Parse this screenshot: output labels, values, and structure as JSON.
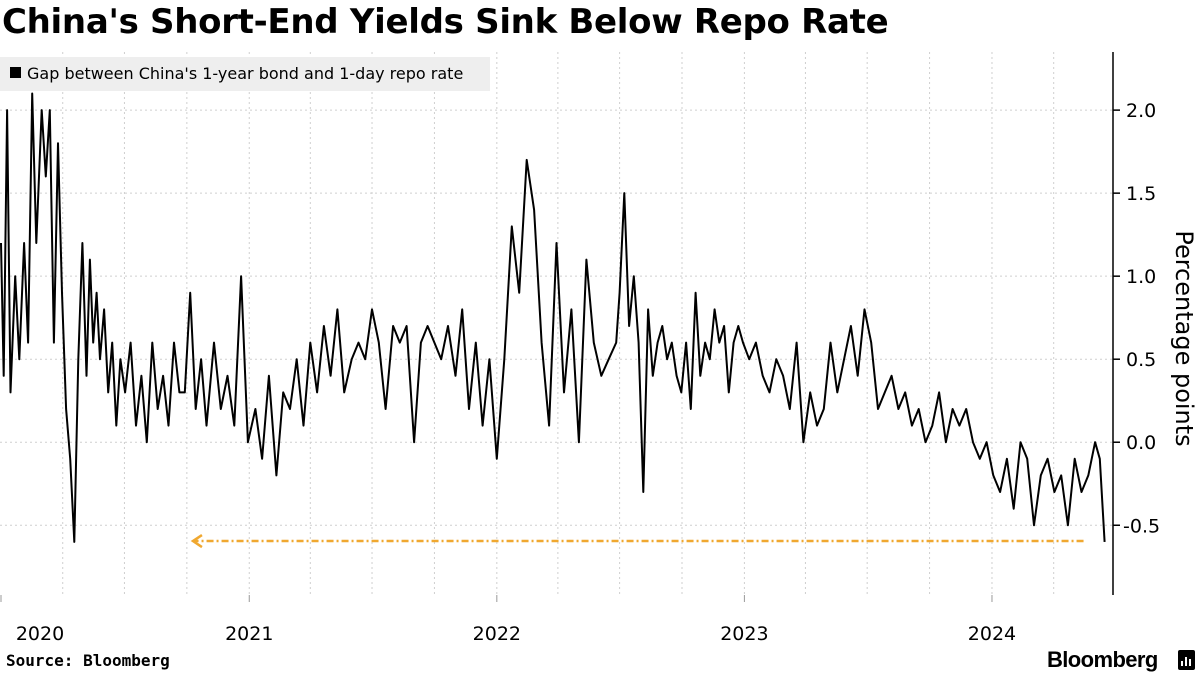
{
  "title": "China's Short-End Yields Sink Below Repo Rate",
  "source": "Source: Bloomberg",
  "brand": "Bloomberg",
  "chart_data": {
    "type": "line",
    "ylabel": "Percentage points",
    "ylim": [
      -0.92,
      2.35
    ],
    "y_ticks": [
      2.0,
      1.5,
      1.0,
      0.5,
      0.0,
      -0.5
    ],
    "y_tick_labels": [
      "2.0",
      "1.5",
      "1.0",
      "0.5",
      "0.0",
      "-0.5"
    ],
    "x_tick_labels": [
      "2020",
      "2021",
      "2022",
      "2023",
      "2024"
    ],
    "legend_position": "top-left",
    "grid": true,
    "series": [
      {
        "name": "Gap between China's 1-year bond and 1-day repo rate",
        "color": "#000000",
        "x": [
          "2020-01-01",
          "2020-01-05",
          "2020-01-10",
          "2020-01-15",
          "2020-01-22",
          "2020-01-28",
          "2020-02-04",
          "2020-02-10",
          "2020-02-16",
          "2020-02-22",
          "2020-03-01",
          "2020-03-07",
          "2020-03-13",
          "2020-03-19",
          "2020-03-25",
          "2020-03-31",
          "2020-04-06",
          "2020-04-12",
          "2020-04-18",
          "2020-04-24",
          "2020-04-30",
          "2020-05-06",
          "2020-05-11",
          "2020-05-16",
          "2020-05-21",
          "2020-05-26",
          "2020-06-01",
          "2020-06-07",
          "2020-06-13",
          "2020-06-19",
          "2020-06-25",
          "2020-07-02",
          "2020-07-10",
          "2020-07-18",
          "2020-07-26",
          "2020-08-03",
          "2020-08-11",
          "2020-08-19",
          "2020-08-27",
          "2020-09-04",
          "2020-09-12",
          "2020-09-20",
          "2020-09-28",
          "2020-10-06",
          "2020-10-14",
          "2020-10-22",
          "2020-10-30",
          "2020-11-10",
          "2020-11-20",
          "2020-11-30",
          "2020-12-10",
          "2020-12-20",
          "2020-12-30",
          "2021-01-10",
          "2021-01-20",
          "2021-01-30",
          "2021-02-10",
          "2021-02-20",
          "2021-03-02",
          "2021-03-12",
          "2021-03-22",
          "2021-04-01",
          "2021-04-11",
          "2021-04-21",
          "2021-05-01",
          "2021-05-11",
          "2021-05-21",
          "2021-06-01",
          "2021-06-11",
          "2021-06-21",
          "2021-07-01",
          "2021-07-11",
          "2021-07-21",
          "2021-08-01",
          "2021-08-11",
          "2021-08-21",
          "2021-09-01",
          "2021-09-11",
          "2021-09-21",
          "2021-10-01",
          "2021-10-11",
          "2021-10-21",
          "2021-11-01",
          "2021-11-11",
          "2021-11-21",
          "2021-12-01",
          "2021-12-11",
          "2021-12-21",
          "2022-01-01",
          "2022-01-12",
          "2022-01-23",
          "2022-02-03",
          "2022-02-14",
          "2022-02-25",
          "2022-03-08",
          "2022-03-19",
          "2022-03-30",
          "2022-04-10",
          "2022-04-21",
          "2022-05-02",
          "2022-05-13",
          "2022-05-24",
          "2022-06-04",
          "2022-06-15",
          "2022-06-26",
          "2022-07-01",
          "2022-07-08",
          "2022-07-15",
          "2022-07-22",
          "2022-07-29",
          "2022-08-05",
          "2022-08-12",
          "2022-08-19",
          "2022-08-26",
          "2022-09-02",
          "2022-09-09",
          "2022-09-16",
          "2022-09-23",
          "2022-09-30",
          "2022-10-07",
          "2022-10-14",
          "2022-10-21",
          "2022-10-28",
          "2022-11-04",
          "2022-11-11",
          "2022-11-18",
          "2022-11-25",
          "2022-12-02",
          "2022-12-09",
          "2022-12-16",
          "2022-12-23",
          "2022-12-30",
          "2023-01-08",
          "2023-01-18",
          "2023-01-28",
          "2023-02-07",
          "2023-02-17",
          "2023-02-27",
          "2023-03-09",
          "2023-03-19",
          "2023-03-29",
          "2023-04-08",
          "2023-04-18",
          "2023-04-28",
          "2023-05-08",
          "2023-05-18",
          "2023-05-28",
          "2023-06-07",
          "2023-06-17",
          "2023-06-27",
          "2023-07-07",
          "2023-07-17",
          "2023-07-27",
          "2023-08-06",
          "2023-08-16",
          "2023-08-26",
          "2023-09-05",
          "2023-09-15",
          "2023-09-25",
          "2023-10-05",
          "2023-10-15",
          "2023-10-25",
          "2023-11-04",
          "2023-11-14",
          "2023-11-24",
          "2023-12-04",
          "2023-12-14",
          "2023-12-24",
          "2024-01-03",
          "2024-01-13",
          "2024-01-23",
          "2024-02-02",
          "2024-02-12",
          "2024-02-22",
          "2024-03-03",
          "2024-03-13",
          "2024-03-23",
          "2024-04-02",
          "2024-04-12",
          "2024-04-22",
          "2024-05-02",
          "2024-05-12",
          "2024-05-22",
          "2024-06-01",
          "2024-06-08",
          "2024-06-15"
        ],
        "values": [
          1.2,
          0.4,
          2.0,
          0.3,
          1.0,
          0.5,
          1.2,
          0.6,
          2.1,
          1.2,
          2.0,
          1.6,
          2.0,
          0.6,
          1.8,
          0.9,
          0.2,
          -0.1,
          -0.6,
          0.5,
          1.2,
          0.4,
          1.1,
          0.6,
          0.9,
          0.5,
          0.8,
          0.3,
          0.6,
          0.1,
          0.5,
          0.3,
          0.6,
          0.1,
          0.4,
          0.0,
          0.6,
          0.2,
          0.4,
          0.1,
          0.6,
          0.3,
          0.3,
          0.9,
          0.2,
          0.5,
          0.1,
          0.6,
          0.2,
          0.4,
          0.1,
          1.0,
          0.0,
          0.2,
          -0.1,
          0.4,
          -0.2,
          0.3,
          0.2,
          0.5,
          0.1,
          0.6,
          0.3,
          0.7,
          0.4,
          0.8,
          0.3,
          0.5,
          0.6,
          0.5,
          0.8,
          0.6,
          0.2,
          0.7,
          0.6,
          0.7,
          0.0,
          0.6,
          0.7,
          0.6,
          0.5,
          0.7,
          0.4,
          0.8,
          0.2,
          0.6,
          0.1,
          0.5,
          -0.1,
          0.5,
          1.3,
          0.9,
          1.7,
          1.4,
          0.6,
          0.1,
          1.2,
          0.3,
          0.8,
          0.0,
          1.1,
          0.6,
          0.4,
          0.5,
          0.6,
          0.9,
          1.5,
          0.7,
          1.0,
          0.6,
          -0.3,
          0.8,
          0.4,
          0.6,
          0.7,
          0.5,
          0.6,
          0.4,
          0.3,
          0.6,
          0.2,
          0.9,
          0.4,
          0.6,
          0.5,
          0.8,
          0.6,
          0.7,
          0.3,
          0.6,
          0.7,
          0.6,
          0.5,
          0.6,
          0.4,
          0.3,
          0.5,
          0.4,
          0.2,
          0.6,
          0.0,
          0.3,
          0.1,
          0.2,
          0.6,
          0.3,
          0.5,
          0.7,
          0.4,
          0.8,
          0.6,
          0.2,
          0.3,
          0.4,
          0.2,
          0.3,
          0.1,
          0.2,
          0.0,
          0.1,
          0.3,
          0.0,
          0.2,
          0.1,
          0.2,
          0.0,
          -0.1,
          0.0,
          -0.2,
          -0.3,
          -0.1,
          -0.4,
          0.0,
          -0.1,
          -0.5,
          -0.2,
          -0.1,
          -0.3,
          -0.2,
          -0.5,
          -0.1,
          -0.3,
          -0.2,
          0.0,
          -0.1,
          -0.6
        ]
      }
    ],
    "annotation": {
      "type": "dashed-arrow",
      "color": "#f0a830",
      "y": -0.595,
      "x_from": "2024-05-15",
      "x_to": "2020-10-10"
    }
  }
}
